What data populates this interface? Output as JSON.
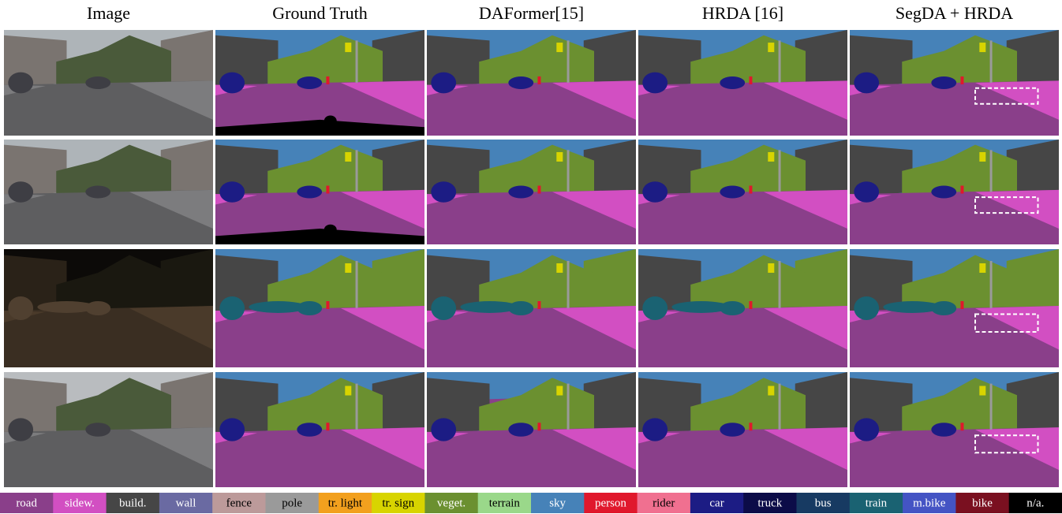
{
  "header": {
    "columns": [
      "Image",
      "Ground Truth",
      "DAFormer[15]",
      "HRDA [16]",
      "SegDA + HRDA"
    ]
  },
  "legend": [
    {
      "label": "road",
      "color": "#8a3f8a"
    },
    {
      "label": "sidew.",
      "color": "#d24fc2"
    },
    {
      "label": "build.",
      "color": "#464646"
    },
    {
      "label": "wall",
      "color": "#6a6aa2"
    },
    {
      "label": "fence",
      "color": "#bc9a9a"
    },
    {
      "label": "pole",
      "color": "#9a9a9a"
    },
    {
      "label": "tr. light",
      "color": "#f2a01e"
    },
    {
      "label": "tr. sign",
      "color": "#d8d400"
    },
    {
      "label": "veget.",
      "color": "#6b9030"
    },
    {
      "label": "terrain",
      "color": "#9ad88a"
    },
    {
      "label": "sky",
      "color": "#4682b8"
    },
    {
      "label": "person",
      "color": "#e0182c"
    },
    {
      "label": "rider",
      "color": "#f07090"
    },
    {
      "label": "car",
      "color": "#1c1c84"
    },
    {
      "label": "truck",
      "color": "#0c0c48"
    },
    {
      "label": "bus",
      "color": "#173a62"
    },
    {
      "label": "train",
      "color": "#1a6272"
    },
    {
      "label": "m.bike",
      "color": "#4454c4"
    },
    {
      "label": "bike",
      "color": "#7a1020"
    },
    {
      "label": "n/a.",
      "color": "#000000"
    }
  ]
}
